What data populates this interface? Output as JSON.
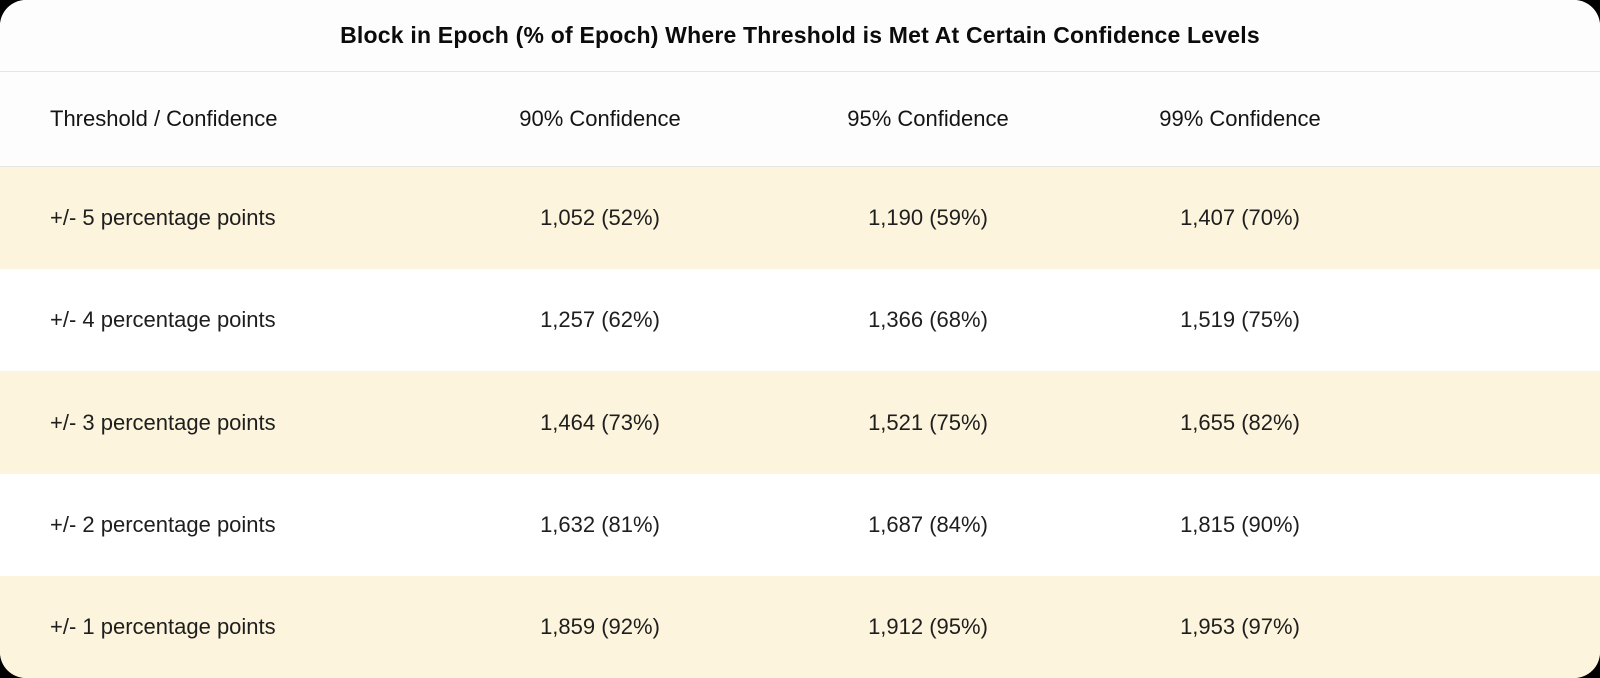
{
  "page": {
    "background_color": "#000000",
    "card_background": "#FDFDFD",
    "row_highlight_color": "#FCF4DC",
    "row_plain_color": "#FFFFFF",
    "divider_color": "#E7E6E3",
    "text_color": "#1E1E1E"
  },
  "table": {
    "title": "Block in Epoch (% of Epoch) Where Threshold is Met At Certain Confidence Levels",
    "columns": [
      "Threshold / Confidence",
      "90% Confidence",
      "95% Confidence",
      "99% Confidence"
    ],
    "rows": [
      {
        "label": "+/- 5 percentage points",
        "values": [
          "1,052 (52%)",
          "1,190 (59%)",
          "1,407 (70%)"
        ]
      },
      {
        "label": "+/- 4 percentage points",
        "values": [
          "1,257 (62%)",
          "1,366 (68%)",
          "1,519 (75%)"
        ]
      },
      {
        "label": "+/- 3 percentage points",
        "values": [
          "1,464 (73%)",
          "1,521 (75%)",
          "1,655 (82%)"
        ]
      },
      {
        "label": "+/- 2 percentage points",
        "values": [
          "1,632 (81%)",
          "1,687 (84%)",
          "1,815 (90%)"
        ]
      },
      {
        "label": "+/- 1 percentage points",
        "values": [
          "1,859 (92%)",
          "1,912 (95%)",
          "1,953 (97%)"
        ]
      }
    ]
  },
  "chart_data": {
    "type": "table",
    "title": "Block in Epoch (% of Epoch) Where Threshold is Met At Certain Confidence Levels",
    "row_header": "Threshold / Confidence",
    "categories": [
      "+/- 5 percentage points",
      "+/- 4 percentage points",
      "+/- 3 percentage points",
      "+/- 2 percentage points",
      "+/- 1 percentage points"
    ],
    "series": [
      {
        "name": "90% Confidence",
        "block_in_epoch": [
          1052,
          1257,
          1464,
          1632,
          1859
        ],
        "percent_of_epoch": [
          52,
          62,
          73,
          81,
          92
        ]
      },
      {
        "name": "95% Confidence",
        "block_in_epoch": [
          1190,
          1366,
          1521,
          1687,
          1912
        ],
        "percent_of_epoch": [
          59,
          68,
          75,
          84,
          95
        ]
      },
      {
        "name": "99% Confidence",
        "block_in_epoch": [
          1407,
          1519,
          1655,
          1815,
          1953
        ],
        "percent_of_epoch": [
          70,
          75,
          82,
          90,
          97
        ]
      }
    ]
  }
}
